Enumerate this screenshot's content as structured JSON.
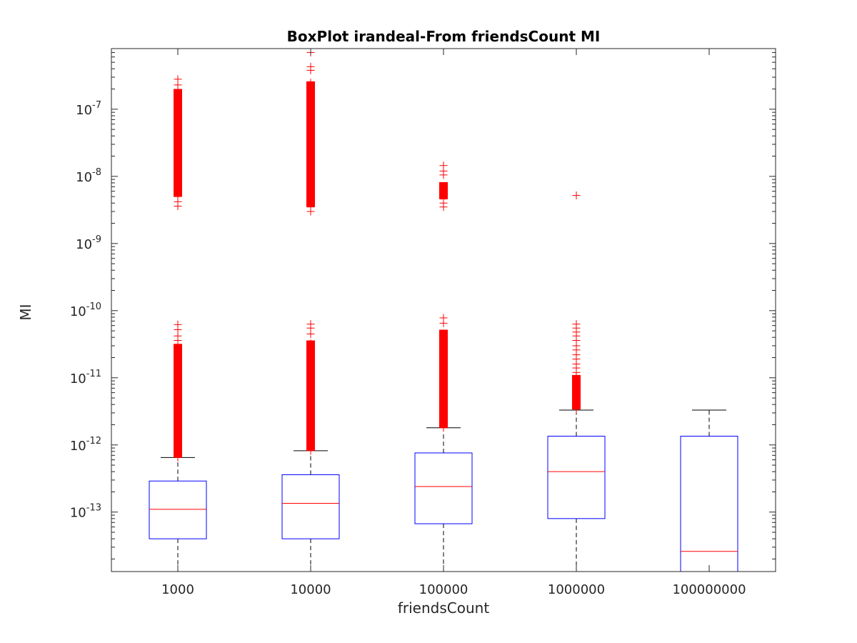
{
  "chart_data": {
    "type": "box",
    "title": "BoxPlot irandeal-From friendsCount MI",
    "xlabel": "friendsCount",
    "ylabel": "MI",
    "yscale": "log",
    "ylim": [
      1.3e-14,
      8e-07
    ],
    "yticks": [
      {
        "value": 1e-13,
        "base": "10",
        "exp": "-13"
      },
      {
        "value": 1e-12,
        "base": "10",
        "exp": "-12"
      },
      {
        "value": 1e-11,
        "base": "10",
        "exp": "-11"
      },
      {
        "value": 1e-10,
        "base": "10",
        "exp": "-10"
      },
      {
        "value": 1e-09,
        "base": "10",
        "exp": "-9"
      },
      {
        "value": 1e-08,
        "base": "10",
        "exp": "-8"
      },
      {
        "value": 1e-07,
        "base": "10",
        "exp": "-7"
      }
    ],
    "categories": [
      "1000",
      "10000",
      "100000",
      "1000000",
      "100000000"
    ],
    "boxes": [
      {
        "category": "1000",
        "whisker_low": 1.3e-14,
        "q1": 4e-14,
        "median": 1.1e-13,
        "q3": 2.9e-13,
        "whisker_high": 6.5e-13,
        "outliers_low_band": [
          6.5e-13,
          3.2e-11
        ],
        "outliers_low_extra": [
          3.6e-11,
          4.2e-11,
          5.2e-11,
          6.2e-11
        ],
        "outliers_high_band": [
          5e-09,
          2e-07
        ],
        "outliers_high_extra": [
          3.6e-09,
          4.2e-09,
          2.3e-07,
          2.8e-07
        ]
      },
      {
        "category": "10000",
        "whisker_low": 1.3e-14,
        "q1": 4e-14,
        "median": 1.35e-13,
        "q3": 3.6e-13,
        "whisker_high": 8.2e-13,
        "outliers_low_band": [
          8.2e-13,
          3.6e-11
        ],
        "outliers_low_extra": [
          4.5e-11,
          5.5e-11,
          6.3e-11
        ],
        "outliers_high_band": [
          3.5e-09,
          2.6e-07
        ],
        "outliers_high_extra": [
          3e-09,
          3.8e-07,
          4.3e-07,
          7e-07
        ]
      },
      {
        "category": "100000",
        "whisker_low": 1.3e-14,
        "q1": 6.7e-14,
        "median": 2.4e-13,
        "q3": 7.6e-13,
        "whisker_high": 1.8e-12,
        "outliers_low_band": [
          1.8e-12,
          5.2e-11
        ],
        "outliers_low_extra": [
          6.5e-11,
          7.8e-11
        ],
        "outliers_high_band": [
          4.6e-09,
          8.2e-09
        ],
        "outliers_high_extra": [
          3.5e-09,
          4e-09,
          1.05e-08,
          1.2e-08,
          1.45e-08
        ]
      },
      {
        "category": "1000000",
        "whisker_low": 1.3e-14,
        "q1": 8e-14,
        "median": 4e-13,
        "q3": 1.35e-12,
        "whisker_high": 3.3e-12,
        "outliers_low_band": [
          3.4e-12,
          1.1e-11
        ],
        "outliers_low_extra": [
          1.2e-11,
          1.4e-11,
          1.6e-11,
          1.9e-11,
          2.2e-11,
          2.6e-11,
          3e-11,
          3.6e-11,
          4.2e-11,
          4.8e-11,
          5.5e-11,
          6.3e-11
        ],
        "outliers_high_band": [],
        "outliers_high_extra": [
          5.2e-09
        ]
      },
      {
        "category": "100000000",
        "whisker_low": 1.3e-14,
        "q1": 1.3e-14,
        "median": 2.6e-14,
        "q3": 1.35e-12,
        "whisker_high": 3.3e-12,
        "outliers_low_band": [],
        "outliers_low_extra": [],
        "outliers_high_band": [],
        "outliers_high_extra": []
      }
    ],
    "colors": {
      "box": "#0000ff",
      "median": "#ff0000",
      "whisker": "#000000",
      "outlier": "#ff0000",
      "axes": "#262626"
    },
    "grid": false,
    "legend": "none"
  }
}
